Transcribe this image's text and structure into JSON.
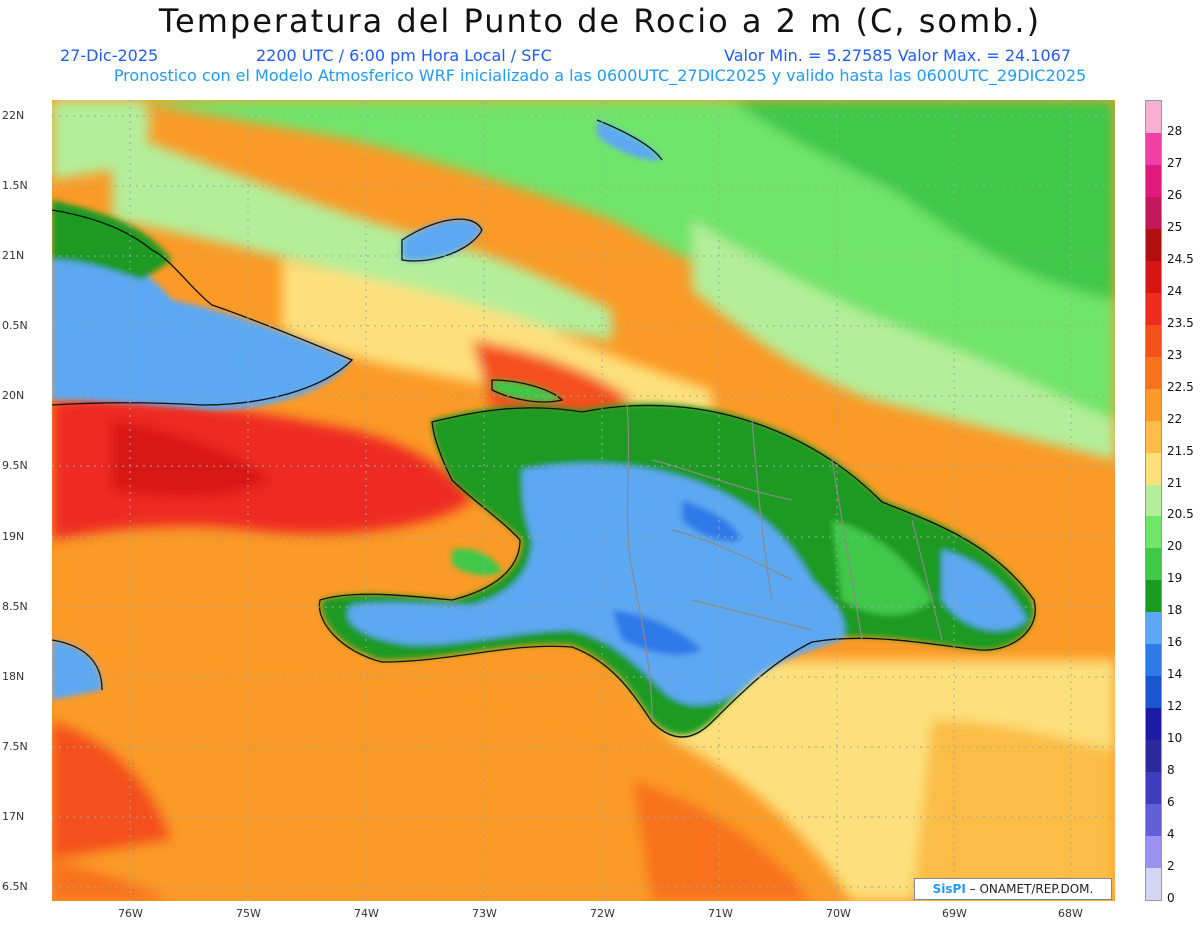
{
  "title": "Temperatura del Punto de Rocio a 2 m (C, somb.)",
  "date": "27-Dic-2025",
  "time": "2200 UTC / 6:00 pm Hora Local / SFC",
  "min_max": "Valor Min. = 5.27585  Valor Max. = 24.1067",
  "model_line": "Pronostico con el Modelo Atmosferico WRF inicializado a las 0600UTC_27DIC2025 y valido hasta las  0600UTC_29DIC2025",
  "lat_labels": [
    "22N",
    "1.5N",
    "21N",
    "0.5N",
    "20N",
    "9.5N",
    "19N",
    "8.5N",
    "18N",
    "7.5N",
    "17N",
    "6.5N"
  ],
  "lon_labels": [
    "76W",
    "75W",
    "74W",
    "73W",
    "72W",
    "71W",
    "70W",
    "69W",
    "68W"
  ],
  "legend": {
    "labels": [
      "28",
      "27",
      "26",
      "25",
      "24.5",
      "24",
      "23.5",
      "23",
      "22.5",
      "22",
      "21.5",
      "21",
      "20.5",
      "20",
      "19",
      "18",
      "16",
      "14",
      "12",
      "10",
      "8",
      "6",
      "4",
      "2",
      "0"
    ],
    "colors": [
      "#f7b0d4",
      "#f23fa6",
      "#e0197e",
      "#c4175b",
      "#b30d0d",
      "#d71515",
      "#ee2b20",
      "#f4501c",
      "#f8711d",
      "#fb9a26",
      "#fbbd45",
      "#fde07c",
      "#b4ee9a",
      "#71e46a",
      "#3fc84a",
      "#1a9a22",
      "#5da8f2",
      "#2f7ae8",
      "#1c55d0",
      "#1a1ba3",
      "#2a2a9a",
      "#3d3dbd",
      "#6060d6",
      "#9c90f0",
      "#d4d4f4"
    ]
  },
  "badge": {
    "logo": "SisPI",
    "text": "– ONAMET/REP.DOM."
  }
}
